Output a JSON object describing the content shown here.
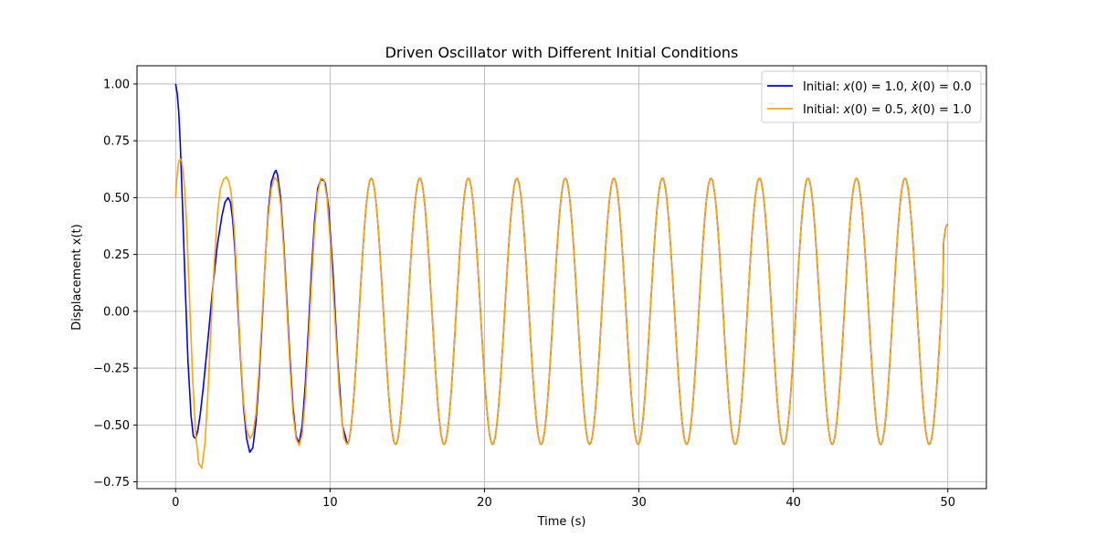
{
  "chart_data": {
    "type": "line",
    "title": "Driven Oscillator with Different Initial Conditions",
    "xlabel": "Time (s)",
    "ylabel": "Displacement x(t)",
    "xlim": [
      -2.5,
      52.5
    ],
    "ylim": [
      -0.78,
      1.08
    ],
    "xticks": [
      0,
      10,
      20,
      30,
      40,
      50
    ],
    "xtick_labels": [
      "0",
      "10",
      "20",
      "30",
      "40",
      "50"
    ],
    "yticks": [
      -0.75,
      -0.5,
      -0.25,
      0.0,
      0.25,
      0.5,
      0.75,
      1.0
    ],
    "ytick_labels": [
      "−0.75",
      "−0.50",
      "−0.25",
      "0.00",
      "0.25",
      "0.50",
      "0.75",
      "1.00"
    ],
    "grid": true,
    "legend_position": "top-right",
    "series": [
      {
        "name": "Initial: x(0) = 1.0, ẋ(0) = 0.0",
        "legend_parts": [
          "Initial: ",
          "x",
          "(0) = 1.0, ",
          "x",
          "(0) = 0.0"
        ],
        "color": "#0000ff",
        "x": [
          0,
          0.1,
          0.2,
          0.3,
          0.45,
          0.6,
          0.8,
          1.0,
          1.15,
          1.3,
          1.45,
          1.6,
          1.8,
          2.1,
          2.4,
          2.7,
          3.0,
          3.2,
          3.4,
          3.55,
          3.7,
          3.85,
          4.0,
          4.2,
          4.4,
          4.6,
          4.8,
          5.0,
          5.2,
          5.4,
          5.6,
          5.8,
          6.0,
          6.2,
          6.4,
          6.5,
          6.6,
          6.8,
          7.0,
          7.2,
          7.4,
          7.6,
          7.8,
          8.0,
          8.2,
          8.4,
          8.6,
          8.8,
          9.0,
          9.2,
          9.4,
          9.6,
          9.7,
          9.9,
          10.2,
          10.5,
          10.8,
          11.1
        ],
        "y": [
          1.0,
          0.96,
          0.88,
          0.74,
          0.46,
          0.15,
          -0.22,
          -0.46,
          -0.55,
          -0.56,
          -0.52,
          -0.45,
          -0.33,
          -0.12,
          0.1,
          0.29,
          0.42,
          0.48,
          0.5,
          0.48,
          0.4,
          0.26,
          0.06,
          -0.2,
          -0.42,
          -0.56,
          -0.62,
          -0.6,
          -0.49,
          -0.3,
          -0.05,
          0.22,
          0.44,
          0.57,
          0.61,
          0.62,
          0.6,
          0.5,
          0.3,
          0.05,
          -0.2,
          -0.42,
          -0.55,
          -0.58,
          -0.5,
          -0.32,
          -0.08,
          0.18,
          0.4,
          0.54,
          0.58,
          0.575,
          0.56,
          0.46,
          0.16,
          -0.22,
          -0.5,
          -0.58
        ]
      },
      {
        "name": "Initial: x(0) = 0.5, ẋ(0) = 1.0",
        "legend_parts": [
          "Initial: ",
          "x",
          "(0) = 0.5, ",
          "x",
          "(0) = 1.0"
        ],
        "color": "#ffa500",
        "x": [
          0,
          0.1,
          0.2,
          0.3,
          0.4,
          0.55,
          0.7,
          0.9,
          1.1,
          1.3,
          1.5,
          1.7,
          1.9,
          2.1,
          2.3,
          2.5,
          2.7,
          2.9,
          3.1,
          3.3,
          3.45,
          3.6,
          3.8,
          4.0,
          4.2,
          4.4,
          4.6,
          4.8,
          5.0,
          5.2,
          5.4,
          5.6,
          5.8,
          6.0,
          6.2,
          6.4,
          6.6,
          6.8,
          7.0,
          7.2,
          7.4,
          7.6,
          7.8,
          8.0,
          8.2,
          8.4,
          8.6,
          8.8,
          9.0,
          9.2,
          9.4,
          9.6,
          9.8,
          10.0,
          10.3,
          10.6,
          10.9,
          11.1
        ],
        "y": [
          0.5,
          0.6,
          0.66,
          0.67,
          0.66,
          0.57,
          0.4,
          0.06,
          -0.29,
          -0.54,
          -0.67,
          -0.69,
          -0.58,
          -0.35,
          -0.06,
          0.21,
          0.42,
          0.54,
          0.58,
          0.59,
          0.57,
          0.52,
          0.36,
          0.1,
          -0.18,
          -0.4,
          -0.52,
          -0.56,
          -0.54,
          -0.45,
          -0.26,
          -0.02,
          0.22,
          0.42,
          0.54,
          0.59,
          0.57,
          0.47,
          0.27,
          0.02,
          -0.24,
          -0.45,
          -0.56,
          -0.59,
          -0.54,
          -0.38,
          -0.14,
          0.12,
          0.36,
          0.52,
          0.585,
          0.58,
          0.5,
          0.32,
          -0.02,
          -0.36,
          -0.56,
          -0.585
        ]
      }
    ],
    "steady_state": {
      "amplitude": 0.585,
      "period": 3.14159,
      "start": 11.1,
      "end": 50.0,
      "end_value": 0.38
    }
  }
}
